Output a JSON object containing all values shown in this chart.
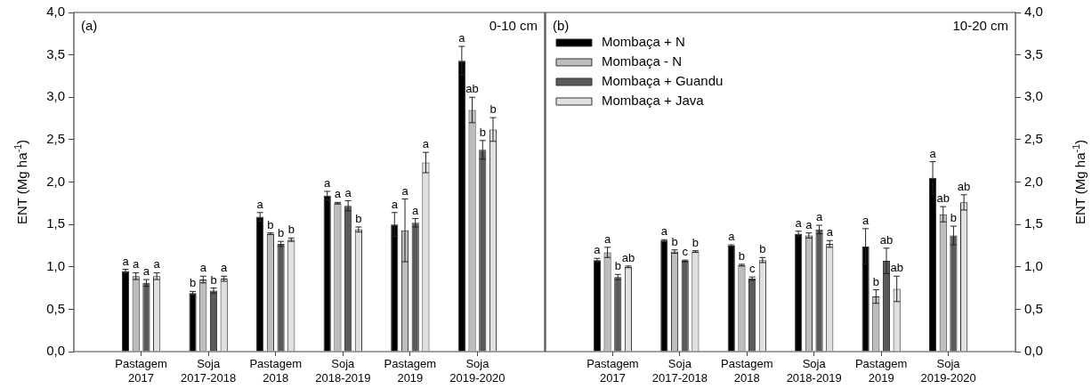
{
  "chart_data": [
    {
      "type": "bar",
      "title": "(a)",
      "subtitle": "0-10 cm",
      "ylabel": "ENT (Mg ha$^{-1}$)",
      "categories": [
        "Pastagem 2017",
        "Soja 2017-2018",
        "Pastagem 2018",
        "Soja 2018-2019",
        "Pastagem 2019",
        "Soja 2019-2020"
      ],
      "ylim": [
        0,
        4
      ],
      "yticks": [
        {
          "value": 0,
          "label": "0,0"
        },
        {
          "value": 0.5,
          "label": "0,5"
        },
        {
          "value": 1,
          "label": "1,0"
        },
        {
          "value": 1.5,
          "label": "1,5"
        },
        {
          "value": 2,
          "label": "2,0"
        },
        {
          "value": 2.5,
          "label": "2,5"
        },
        {
          "value": 3,
          "label": "3,0"
        },
        {
          "value": 3.5,
          "label": "3,5"
        },
        {
          "value": 4,
          "label": "4,0"
        }
      ],
      "series": [
        {
          "color": "#000000",
          "values": [
            0.95,
            0.69,
            1.59,
            1.84,
            1.5,
            3.43
          ],
          "errors": [
            0.02,
            0.02,
            0.05,
            0.05,
            0.14,
            0.17
          ],
          "value_labels": [
            "a",
            "b",
            "a",
            "a",
            "a",
            "a"
          ]
        },
        {
          "color": "#bdbdbd",
          "values": [
            0.89,
            0.85,
            1.39,
            1.75,
            1.43,
            2.85
          ],
          "errors": [
            0.04,
            0.04,
            0.01,
            0.01,
            0.37,
            0.15
          ],
          "value_labels": [
            "a",
            "a",
            "b",
            "a",
            "a",
            "ab"
          ]
        },
        {
          "color": "#5a5a5a",
          "values": [
            0.81,
            0.72,
            1.27,
            1.72,
            1.52,
            2.38
          ],
          "errors": [
            0.04,
            0.03,
            0.03,
            0.06,
            0.05,
            0.11
          ],
          "value_labels": [
            "a",
            "b",
            "b",
            "a",
            "a",
            "b"
          ]
        },
        {
          "color": "#e0e0e0",
          "values": [
            0.89,
            0.86,
            1.32,
            1.44,
            2.23,
            2.62
          ],
          "errors": [
            0.04,
            0.03,
            0.02,
            0.03,
            0.12,
            0.14
          ],
          "value_labels": [
            "a",
            "a",
            "b",
            "b",
            "a",
            "b"
          ]
        }
      ]
    },
    {
      "type": "bar",
      "title": "(b)",
      "subtitle": "10-20 cm",
      "y2label": "ENT (Mg ha$^{-1}$)",
      "legend": "top left",
      "categories": [
        "Pastagem 2017",
        "Soja 2017-2018",
        "Pastagem 2018",
        "Soja 2018-2019",
        "Pastagem 2019",
        "Soja 2019-2020"
      ],
      "y2lim": [
        0,
        4
      ],
      "y2ticks": [
        {
          "value": 0,
          "label": "0,0"
        },
        {
          "value": 0.5,
          "label": "0,5"
        },
        {
          "value": 1,
          "label": "1,0"
        },
        {
          "value": 1.5,
          "label": "1,5"
        },
        {
          "value": 2,
          "label": "2,0"
        },
        {
          "value": 2.5,
          "label": "2,5"
        },
        {
          "value": 3,
          "label": "3,0"
        },
        {
          "value": 3.5,
          "label": "3,5"
        },
        {
          "value": 4,
          "label": "4,0"
        }
      ],
      "series": [
        {
          "name": "Mombaça + N",
          "axis": "y2",
          "color": "#000000",
          "values": [
            1.08,
            1.31,
            1.25,
            1.39,
            1.24,
            2.05
          ],
          "errors": [
            0.02,
            0.01,
            0.01,
            0.03,
            0.21,
            0.19
          ],
          "value_labels": [
            "a",
            "a",
            "a",
            "a",
            "a",
            "a"
          ]
        },
        {
          "name": "Mombaça - N",
          "axis": "y2",
          "color": "#bdbdbd",
          "values": [
            1.17,
            1.18,
            1.02,
            1.37,
            0.65,
            1.62
          ],
          "errors": [
            0.06,
            0.02,
            0.01,
            0.03,
            0.08,
            0.09
          ],
          "value_labels": [
            "a",
            "b",
            "b",
            "a",
            "b",
            "ab"
          ]
        },
        {
          "name": "Mombaça + Guandu",
          "axis": "y2",
          "color": "#5a5a5a",
          "values": [
            0.88,
            1.07,
            0.86,
            1.44,
            1.07,
            1.37
          ],
          "errors": [
            0.03,
            0.01,
            0.02,
            0.05,
            0.15,
            0.11
          ],
          "value_labels": [
            "b",
            "c",
            "c",
            "a",
            "ab",
            "b"
          ]
        },
        {
          "name": "Mombaça + Java",
          "axis": "y2",
          "color": "#e0e0e0",
          "values": [
            1.0,
            1.18,
            1.08,
            1.27,
            0.74,
            1.76
          ],
          "errors": [
            0.01,
            0.01,
            0.03,
            0.04,
            0.15,
            0.09
          ],
          "value_labels": [
            "ab",
            "b",
            "b",
            "a",
            "ab",
            "ab"
          ]
        }
      ]
    }
  ]
}
